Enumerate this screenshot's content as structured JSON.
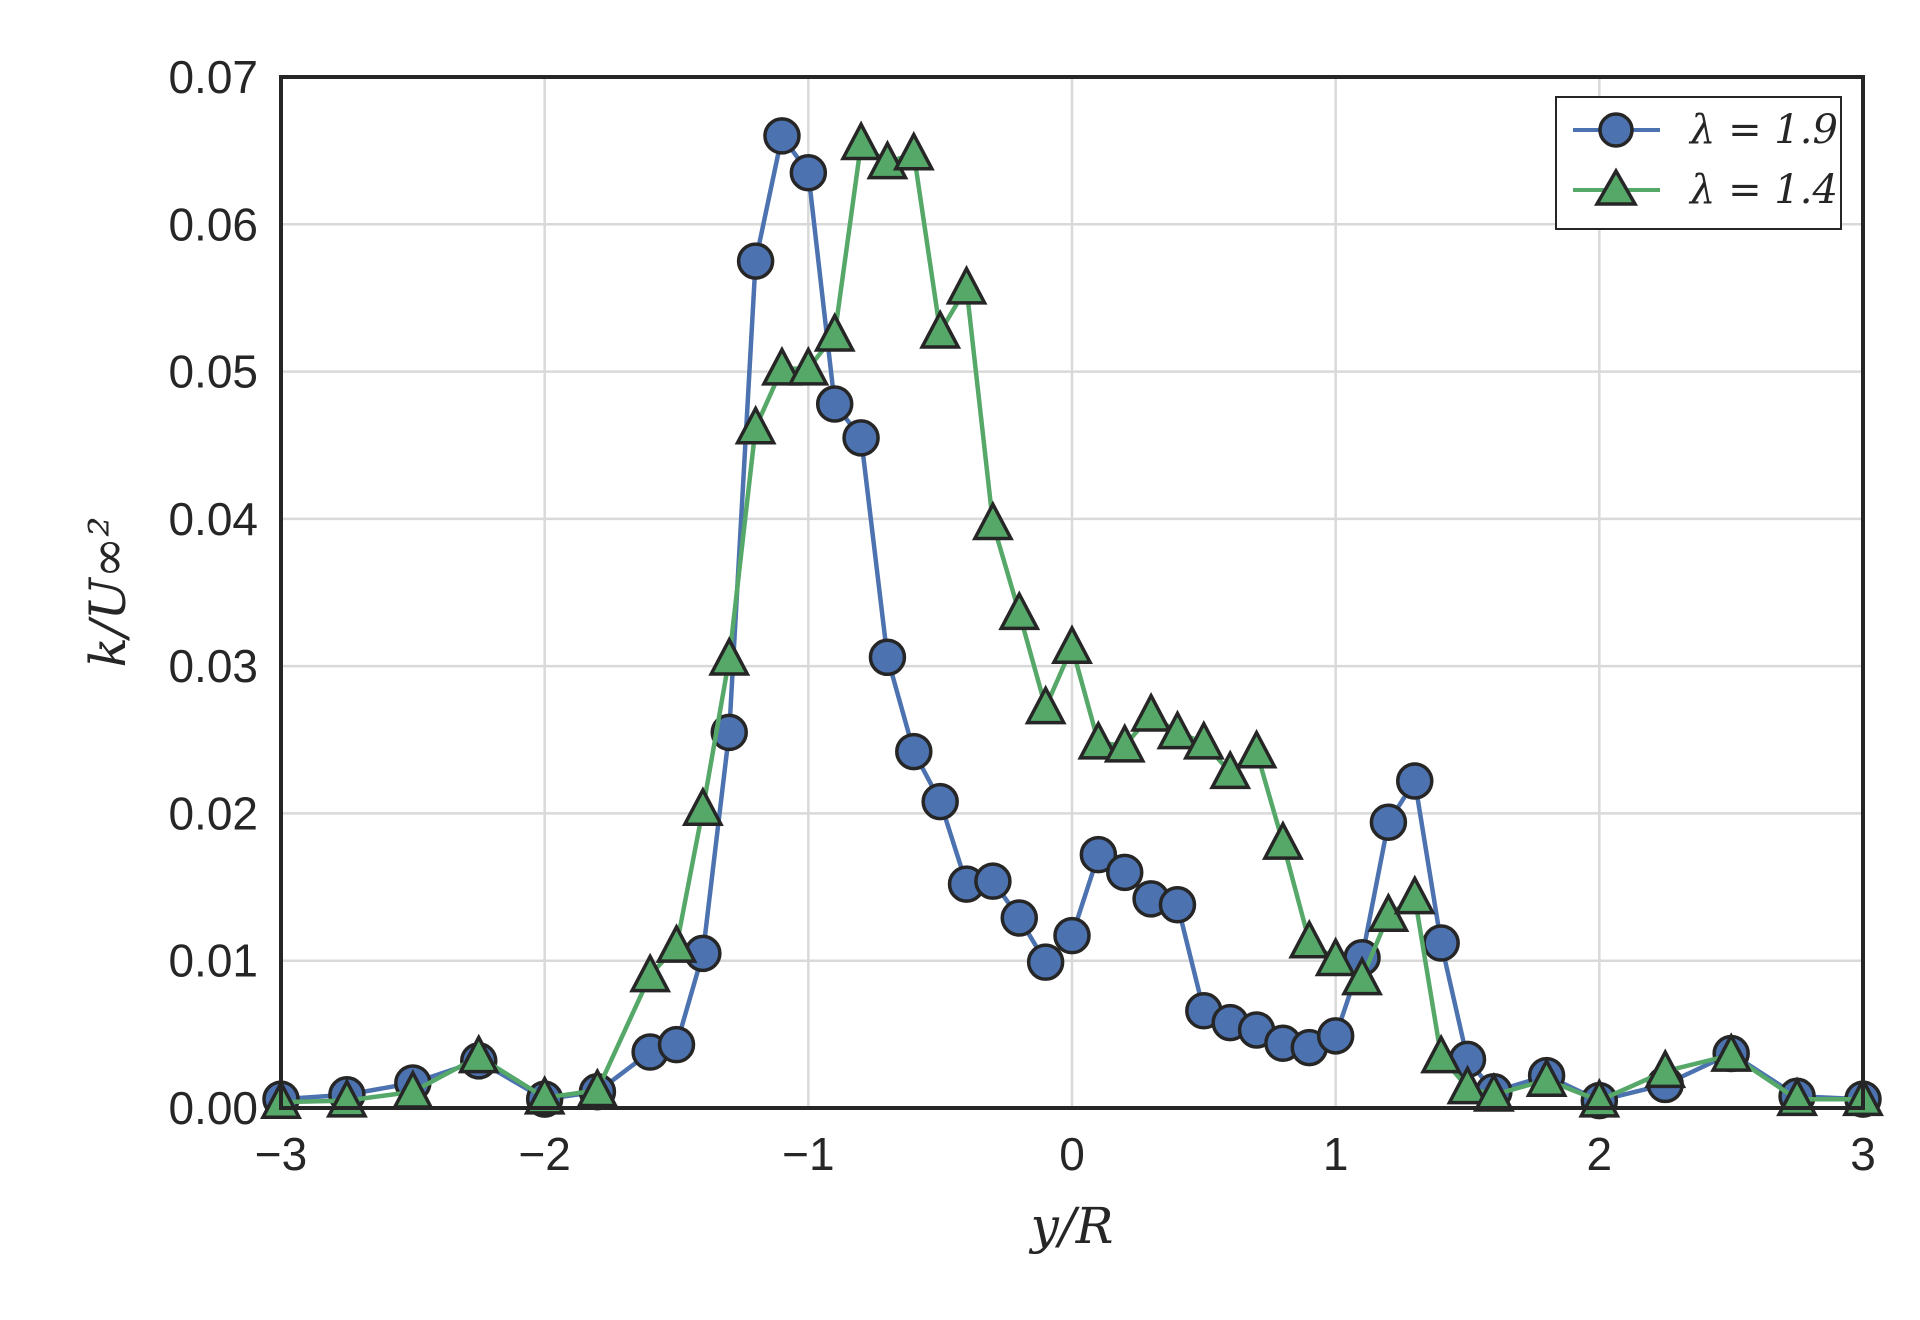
{
  "chart_data": {
    "type": "line",
    "title": "",
    "xlabel": "y/R",
    "ylabel": "k/U∞²",
    "xlim": [
      -3,
      3
    ],
    "ylim": [
      0,
      0.07
    ],
    "grid": true,
    "legend_position": "top-right",
    "xticks": [
      -3,
      -2,
      -1,
      0,
      1,
      2,
      3
    ],
    "xtick_labels": [
      "−3",
      "−2",
      "−1",
      "0",
      "1",
      "2",
      "3"
    ],
    "yticks": [
      0,
      0.01,
      0.02,
      0.03,
      0.04,
      0.05,
      0.06,
      0.07
    ],
    "ytick_labels": [
      "0.00",
      "0.01",
      "0.02",
      "0.03",
      "0.04",
      "0.05",
      "0.06",
      "0.07"
    ],
    "series": [
      {
        "name": "λ = 1.9",
        "marker": "circle",
        "color": "#4c72b0",
        "x": [
          -3.0,
          -2.75,
          -2.5,
          -2.25,
          -2.0,
          -1.8,
          -1.6,
          -1.5,
          -1.4,
          -1.3,
          -1.2,
          -1.1,
          -1.0,
          -0.9,
          -0.8,
          -0.7,
          -0.6,
          -0.5,
          -0.4,
          -0.3,
          -0.2,
          -0.1,
          0.0,
          0.1,
          0.2,
          0.3,
          0.4,
          0.5,
          0.6,
          0.7,
          0.8,
          0.9,
          1.0,
          1.1,
          1.2,
          1.3,
          1.4,
          1.5,
          1.6,
          1.8,
          2.0,
          2.25,
          2.5,
          2.75,
          3.0
        ],
        "y": [
          0.0006,
          0.0009,
          0.0017,
          0.0032,
          0.0006,
          0.0011,
          0.0038,
          0.0043,
          0.0105,
          0.0255,
          0.0575,
          0.066,
          0.0635,
          0.0478,
          0.0455,
          0.0306,
          0.0242,
          0.0208,
          0.0152,
          0.0154,
          0.0129,
          0.0099,
          0.0117,
          0.0172,
          0.016,
          0.0142,
          0.0138,
          0.0066,
          0.0058,
          0.0053,
          0.0044,
          0.0041,
          0.0049,
          0.0102,
          0.0194,
          0.0222,
          0.0112,
          0.0033,
          0.0011,
          0.0022,
          0.0005,
          0.0016,
          0.0037,
          0.0008,
          0.0006
        ]
      },
      {
        "name": "λ = 1.4",
        "marker": "triangle",
        "color": "#55a868",
        "x": [
          -3.0,
          -2.75,
          -2.5,
          -2.25,
          -2.0,
          -1.8,
          -1.6,
          -1.5,
          -1.4,
          -1.3,
          -1.2,
          -1.1,
          -1.0,
          -0.9,
          -0.8,
          -0.7,
          -0.6,
          -0.5,
          -0.4,
          -0.3,
          -0.2,
          -0.1,
          0.0,
          0.1,
          0.2,
          0.3,
          0.4,
          0.5,
          0.6,
          0.7,
          0.8,
          0.9,
          1.0,
          1.1,
          1.2,
          1.3,
          1.4,
          1.5,
          1.6,
          1.8,
          2.0,
          2.25,
          2.5,
          2.75,
          3.0
        ],
        "y": [
          0.0004,
          0.0005,
          0.0011,
          0.0035,
          0.0007,
          0.0012,
          0.009,
          0.011,
          0.0203,
          0.0305,
          0.0462,
          0.0502,
          0.0502,
          0.0525,
          0.0655,
          0.0642,
          0.0648,
          0.0527,
          0.0557,
          0.0397,
          0.0336,
          0.0272,
          0.0313,
          0.0248,
          0.0246,
          0.0267,
          0.0255,
          0.0248,
          0.0228,
          0.0242,
          0.018,
          0.0113,
          0.0101,
          0.0088,
          0.0131,
          0.0143,
          0.0035,
          0.0014,
          0.0009,
          0.0019,
          0.0005,
          0.0025,
          0.0036,
          0.0006,
          0.0006
        ]
      }
    ]
  }
}
